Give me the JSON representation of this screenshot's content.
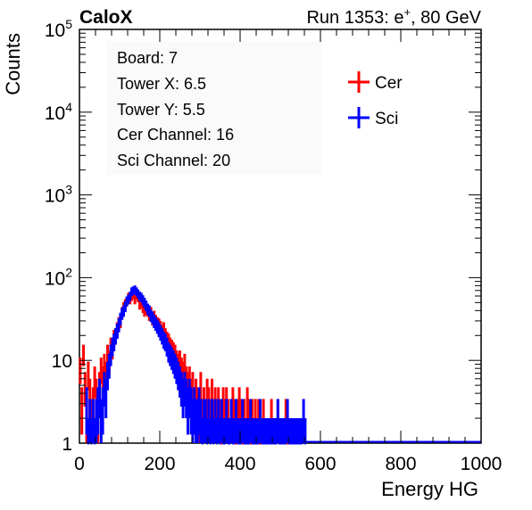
{
  "chart_data": {
    "type": "histogram",
    "experiment_label": "CaloX",
    "run_label": "Run 1353: e",
    "run_label_sup": "+",
    "run_label_tail": ", 80 GeV",
    "xlabel": "Energy HG",
    "ylabel": "Counts",
    "xlim": [
      0,
      1000
    ],
    "ylim": [
      1,
      100000
    ],
    "y_scale": "log",
    "x_ticks": [
      0,
      200,
      400,
      600,
      800,
      1000
    ],
    "x_tick_labels": [
      "0",
      "200",
      "400",
      "600",
      "800",
      "1000"
    ],
    "y_tick_labels": [
      {
        "value": 1,
        "base": "1",
        "exp": ""
      },
      {
        "value": 10,
        "base": "10",
        "exp": ""
      },
      {
        "value": 100,
        "base": "10",
        "exp": "2"
      },
      {
        "value": 1000,
        "base": "10",
        "exp": "3"
      },
      {
        "value": 10000,
        "base": "10",
        "exp": "4"
      },
      {
        "value": 100000,
        "base": "10",
        "exp": "5"
      }
    ],
    "info_box": [
      "Board: 7",
      "Tower X: 6.5",
      "Tower Y: 5.5",
      "Cer Channel: 16",
      "Sci Channel: 20"
    ],
    "legend": {
      "placement": "top-right"
    },
    "series": [
      {
        "name": "Cer",
        "color": "#ff0000",
        "points": [
          [
            2,
            8
          ],
          [
            6,
            3
          ],
          [
            10,
            12
          ],
          [
            14,
            5
          ],
          [
            18,
            2
          ],
          [
            22,
            7
          ],
          [
            26,
            4
          ],
          [
            30,
            2
          ],
          [
            34,
            3
          ],
          [
            38,
            6
          ],
          [
            42,
            4
          ],
          [
            46,
            2
          ],
          [
            50,
            5
          ],
          [
            54,
            8
          ],
          [
            58,
            6
          ],
          [
            62,
            9
          ],
          [
            66,
            7
          ],
          [
            70,
            12
          ],
          [
            74,
            10
          ],
          [
            78,
            15
          ],
          [
            82,
            14
          ],
          [
            86,
            19
          ],
          [
            90,
            20
          ],
          [
            94,
            24
          ],
          [
            98,
            28
          ],
          [
            102,
            30
          ],
          [
            106,
            38
          ],
          [
            110,
            44
          ],
          [
            114,
            48
          ],
          [
            118,
            52
          ],
          [
            122,
            58
          ],
          [
            126,
            55
          ],
          [
            130,
            60
          ],
          [
            134,
            63
          ],
          [
            138,
            55
          ],
          [
            142,
            62
          ],
          [
            146,
            58
          ],
          [
            150,
            48
          ],
          [
            154,
            50
          ],
          [
            158,
            44
          ],
          [
            162,
            40
          ],
          [
            166,
            42
          ],
          [
            170,
            40
          ],
          [
            174,
            36
          ],
          [
            178,
            38
          ],
          [
            182,
            32
          ],
          [
            186,
            34
          ],
          [
            190,
            30
          ],
          [
            194,
            28
          ],
          [
            198,
            27
          ],
          [
            202,
            25
          ],
          [
            206,
            22
          ],
          [
            210,
            24
          ],
          [
            214,
            20
          ],
          [
            218,
            18
          ],
          [
            222,
            17
          ],
          [
            226,
            15
          ],
          [
            230,
            14
          ],
          [
            234,
            13
          ],
          [
            238,
            12
          ],
          [
            242,
            10
          ],
          [
            246,
            9
          ],
          [
            250,
            10
          ],
          [
            254,
            8
          ],
          [
            258,
            7
          ],
          [
            262,
            9
          ],
          [
            266,
            6
          ],
          [
            270,
            5
          ],
          [
            274,
            6
          ],
          [
            278,
            4
          ],
          [
            282,
            5
          ],
          [
            286,
            3
          ],
          [
            290,
            4
          ],
          [
            294,
            3
          ],
          [
            298,
            2
          ],
          [
            302,
            5
          ],
          [
            306,
            2
          ],
          [
            310,
            3
          ],
          [
            314,
            2
          ],
          [
            318,
            4
          ],
          [
            322,
            3
          ],
          [
            326,
            2
          ],
          [
            330,
            4
          ],
          [
            334,
            2
          ],
          [
            338,
            3
          ],
          [
            342,
            2
          ],
          [
            346,
            3
          ],
          [
            350,
            2
          ],
          [
            354,
            1
          ],
          [
            358,
            3
          ],
          [
            362,
            2
          ],
          [
            366,
            3
          ],
          [
            370,
            2
          ],
          [
            374,
            1
          ],
          [
            378,
            2
          ],
          [
            382,
            3
          ],
          [
            386,
            2
          ],
          [
            390,
            1
          ],
          [
            394,
            2
          ],
          [
            398,
            3
          ],
          [
            402,
            2
          ],
          [
            406,
            1
          ],
          [
            410,
            2
          ],
          [
            414,
            1
          ],
          [
            418,
            3
          ],
          [
            422,
            2
          ],
          [
            426,
            1
          ],
          [
            430,
            2
          ],
          [
            434,
            1
          ],
          [
            438,
            2
          ],
          [
            442,
            1
          ],
          [
            446,
            2
          ],
          [
            450,
            1
          ],
          [
            454,
            1
          ],
          [
            458,
            2
          ],
          [
            462,
            1
          ],
          [
            466,
            1
          ],
          [
            470,
            1
          ],
          [
            474,
            1
          ],
          [
            478,
            2
          ],
          [
            482,
            1
          ],
          [
            486,
            1
          ],
          [
            490,
            1
          ],
          [
            494,
            2
          ],
          [
            498,
            1
          ],
          [
            502,
            1
          ],
          [
            506,
            1
          ],
          [
            510,
            1
          ],
          [
            514,
            2
          ],
          [
            518,
            1
          ]
        ]
      },
      {
        "name": "Sci",
        "color": "#0000ff",
        "points": [
          [
            18,
            3
          ],
          [
            22,
            1
          ],
          [
            26,
            2
          ],
          [
            30,
            1
          ],
          [
            34,
            2
          ],
          [
            38,
            1
          ],
          [
            42,
            2
          ],
          [
            46,
            3
          ],
          [
            50,
            4
          ],
          [
            54,
            2
          ],
          [
            58,
            3
          ],
          [
            62,
            5
          ],
          [
            66,
            4
          ],
          [
            70,
            7
          ],
          [
            74,
            9
          ],
          [
            78,
            12
          ],
          [
            82,
            15
          ],
          [
            86,
            17
          ],
          [
            90,
            20
          ],
          [
            94,
            23
          ],
          [
            98,
            27
          ],
          [
            102,
            32
          ],
          [
            106,
            37
          ],
          [
            110,
            40
          ],
          [
            114,
            45
          ],
          [
            118,
            52
          ],
          [
            122,
            55
          ],
          [
            126,
            60
          ],
          [
            130,
            68
          ],
          [
            134,
            70
          ],
          [
            138,
            72
          ],
          [
            142,
            68
          ],
          [
            146,
            64
          ],
          [
            150,
            60
          ],
          [
            154,
            58
          ],
          [
            158,
            54
          ],
          [
            162,
            50
          ],
          [
            166,
            46
          ],
          [
            170,
            42
          ],
          [
            174,
            40
          ],
          [
            178,
            35
          ],
          [
            182,
            33
          ],
          [
            186,
            30
          ],
          [
            190,
            28
          ],
          [
            194,
            26
          ],
          [
            198,
            24
          ],
          [
            202,
            22
          ],
          [
            206,
            20
          ],
          [
            210,
            18
          ],
          [
            214,
            17
          ],
          [
            218,
            15
          ],
          [
            222,
            13
          ],
          [
            226,
            12
          ],
          [
            230,
            11
          ],
          [
            234,
            10
          ],
          [
            238,
            9
          ],
          [
            242,
            8
          ],
          [
            246,
            7
          ],
          [
            250,
            6
          ],
          [
            254,
            5
          ],
          [
            258,
            4
          ],
          [
            262,
            5
          ],
          [
            266,
            4
          ],
          [
            270,
            3
          ],
          [
            274,
            4
          ],
          [
            278,
            3
          ],
          [
            282,
            2
          ],
          [
            286,
            3
          ],
          [
            290,
            2
          ],
          [
            294,
            2
          ],
          [
            298,
            3
          ],
          [
            302,
            2
          ],
          [
            306,
            1
          ],
          [
            310,
            2
          ],
          [
            314,
            2
          ],
          [
            318,
            1
          ],
          [
            322,
            2
          ],
          [
            326,
            1
          ],
          [
            330,
            2
          ],
          [
            334,
            1
          ],
          [
            338,
            2
          ],
          [
            342,
            1
          ],
          [
            346,
            2
          ],
          [
            350,
            1
          ],
          [
            354,
            2
          ],
          [
            358,
            1
          ],
          [
            362,
            1
          ],
          [
            366,
            2
          ],
          [
            370,
            1
          ],
          [
            374,
            1
          ],
          [
            378,
            2
          ],
          [
            382,
            1
          ],
          [
            386,
            1
          ],
          [
            390,
            2
          ],
          [
            394,
            1
          ],
          [
            398,
            1
          ],
          [
            402,
            1
          ],
          [
            406,
            2
          ],
          [
            410,
            1
          ],
          [
            414,
            1
          ],
          [
            418,
            1
          ],
          [
            422,
            1
          ],
          [
            426,
            2
          ],
          [
            430,
            1
          ],
          [
            434,
            1
          ],
          [
            438,
            1
          ],
          [
            442,
            1
          ],
          [
            446,
            1
          ],
          [
            450,
            2
          ],
          [
            454,
            1
          ],
          [
            458,
            1
          ],
          [
            462,
            1
          ],
          [
            466,
            1
          ],
          [
            470,
            1
          ],
          [
            474,
            1
          ],
          [
            478,
            1
          ],
          [
            482,
            1
          ],
          [
            486,
            1
          ],
          [
            490,
            1
          ],
          [
            494,
            2
          ],
          [
            498,
            1
          ],
          [
            502,
            1
          ],
          [
            506,
            1
          ],
          [
            510,
            1
          ],
          [
            514,
            1
          ],
          [
            518,
            2
          ],
          [
            522,
            1
          ],
          [
            526,
            1
          ],
          [
            530,
            1
          ],
          [
            534,
            1
          ],
          [
            538,
            1
          ],
          [
            542,
            1
          ],
          [
            546,
            1
          ],
          [
            550,
            1
          ],
          [
            554,
            1
          ],
          [
            558,
            2
          ],
          [
            562,
            1
          ]
        ]
      }
    ]
  }
}
